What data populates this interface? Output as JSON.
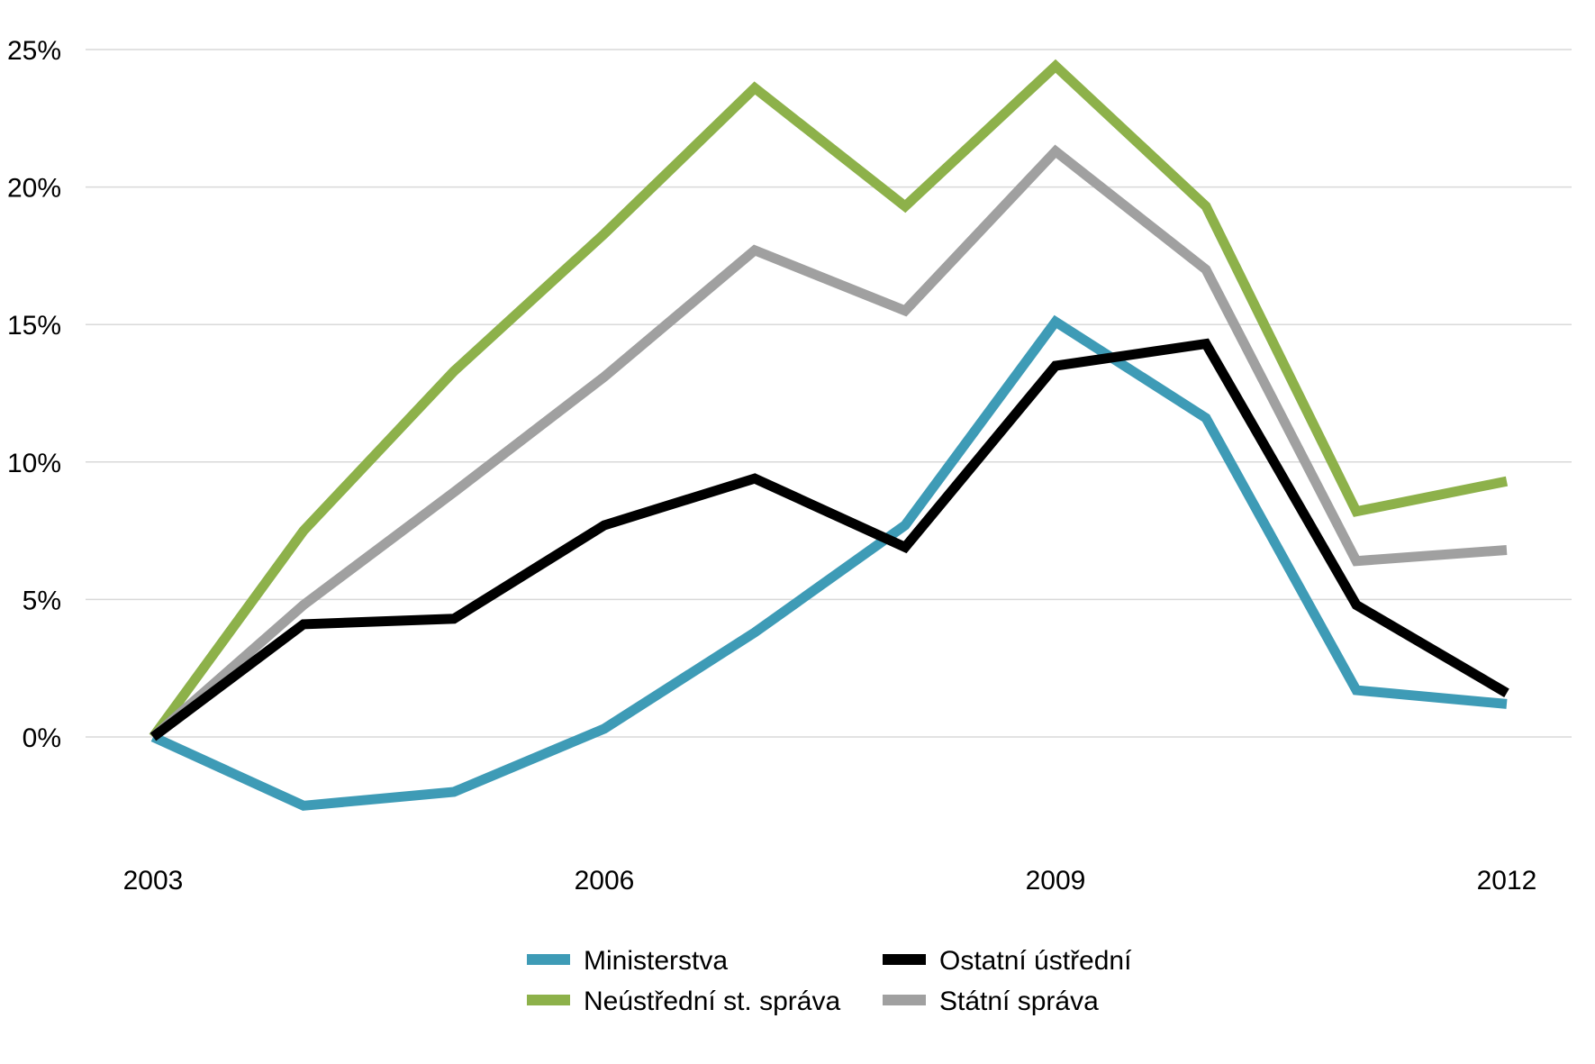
{
  "chart_data": {
    "type": "line",
    "title": "",
    "xlabel": "",
    "ylabel": "",
    "x": [
      2003,
      2004,
      2005,
      2006,
      2007,
      2008,
      2009,
      2010,
      2011,
      2012
    ],
    "x_tick_labels": [
      "2003",
      "2006",
      "2009",
      "2012"
    ],
    "x_tick_values": [
      2003,
      2006,
      2009,
      2012
    ],
    "y_tick_labels": [
      "0%",
      "5%",
      "10%",
      "15%",
      "20%",
      "25%"
    ],
    "y_tick_values": [
      0,
      5,
      10,
      15,
      20,
      25
    ],
    "ylim": [
      -4,
      25
    ],
    "y_unit": "%",
    "grid": "horizontal",
    "legend_position": "bottom",
    "series": [
      {
        "name": "Ministerstva",
        "color": "#3e9bb6",
        "values": [
          0.0,
          -2.5,
          -2.0,
          0.3,
          3.8,
          7.7,
          15.1,
          11.6,
          1.7,
          1.2
        ]
      },
      {
        "name": "Ostatní ústřední",
        "color": "#000000",
        "values": [
          0.0,
          4.1,
          4.3,
          7.7,
          9.4,
          6.9,
          13.5,
          14.3,
          4.8,
          1.6
        ]
      },
      {
        "name": "Neústřední st. správa",
        "color": "#8db14a",
        "values": [
          0.0,
          7.5,
          13.3,
          18.3,
          23.6,
          19.3,
          24.4,
          19.3,
          8.2,
          9.3
        ]
      },
      {
        "name": "Státní správa",
        "color": "#a0a0a0",
        "values": [
          0.0,
          4.8,
          8.9,
          13.1,
          17.7,
          15.5,
          21.3,
          17.0,
          6.4,
          6.8
        ]
      }
    ],
    "legend": [
      {
        "label": "Ministerstva",
        "color": "#3e9bb6"
      },
      {
        "label": "Ostatní ústřední",
        "color": "#000000"
      },
      {
        "label": "Neústřední st. správa",
        "color": "#8db14a"
      },
      {
        "label": "Státní správa",
        "color": "#a0a0a0"
      }
    ]
  }
}
